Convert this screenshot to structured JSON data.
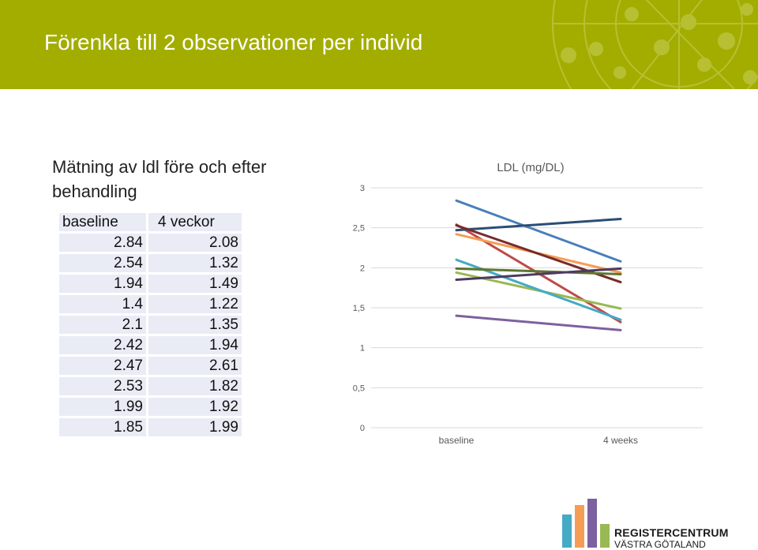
{
  "header": {
    "title": "Förenkla till 2 observationer per individ",
    "color": "#a3ad00"
  },
  "subtitle": "Mätning av ldl före och efter behandling",
  "table": {
    "headers": [
      "baseline",
      "4 veckor"
    ],
    "rows": [
      [
        "2.84",
        "2.08"
      ],
      [
        "2.54",
        "1.32"
      ],
      [
        "1.94",
        "1.49"
      ],
      [
        "1.4",
        "1.22"
      ],
      [
        "2.1",
        "1.35"
      ],
      [
        "2.42",
        "1.94"
      ],
      [
        "2.47",
        "2.61"
      ],
      [
        "2.53",
        "1.82"
      ],
      [
        "1.99",
        "1.92"
      ],
      [
        "1.85",
        "1.99"
      ]
    ]
  },
  "chart_data": {
    "type": "line",
    "title": "LDL (mg/DL)",
    "categories": [
      "baseline",
      "4 weeks"
    ],
    "ylim": [
      0,
      3
    ],
    "yticks": [
      "0",
      "0,5",
      "1",
      "1,5",
      "2",
      "2,5",
      "3"
    ],
    "grid": true,
    "series": [
      {
        "values": [
          2.84,
          2.08
        ],
        "color": "#4a7ebb"
      },
      {
        "values": [
          2.54,
          1.32
        ],
        "color": "#be4b48"
      },
      {
        "values": [
          1.94,
          1.49
        ],
        "color": "#98b954"
      },
      {
        "values": [
          1.4,
          1.22
        ],
        "color": "#7d60a0"
      },
      {
        "values": [
          2.1,
          1.35
        ],
        "color": "#46aac5"
      },
      {
        "values": [
          2.42,
          1.94
        ],
        "color": "#f59d56"
      },
      {
        "values": [
          2.47,
          2.61
        ],
        "color": "#2c4d75"
      },
      {
        "values": [
          2.53,
          1.82
        ],
        "color": "#772c2a"
      },
      {
        "values": [
          1.99,
          1.92
        ],
        "color": "#5f7530"
      },
      {
        "values": [
          1.85,
          1.99
        ],
        "color": "#4d3b62"
      }
    ]
  },
  "logo": {
    "line1": "REGISTERCENTRUM",
    "line2": "VÄSTRA GÖTALAND",
    "bar_colors": [
      "#46aac5",
      "#f59d56",
      "#7d60a0",
      "#98b954"
    ]
  }
}
